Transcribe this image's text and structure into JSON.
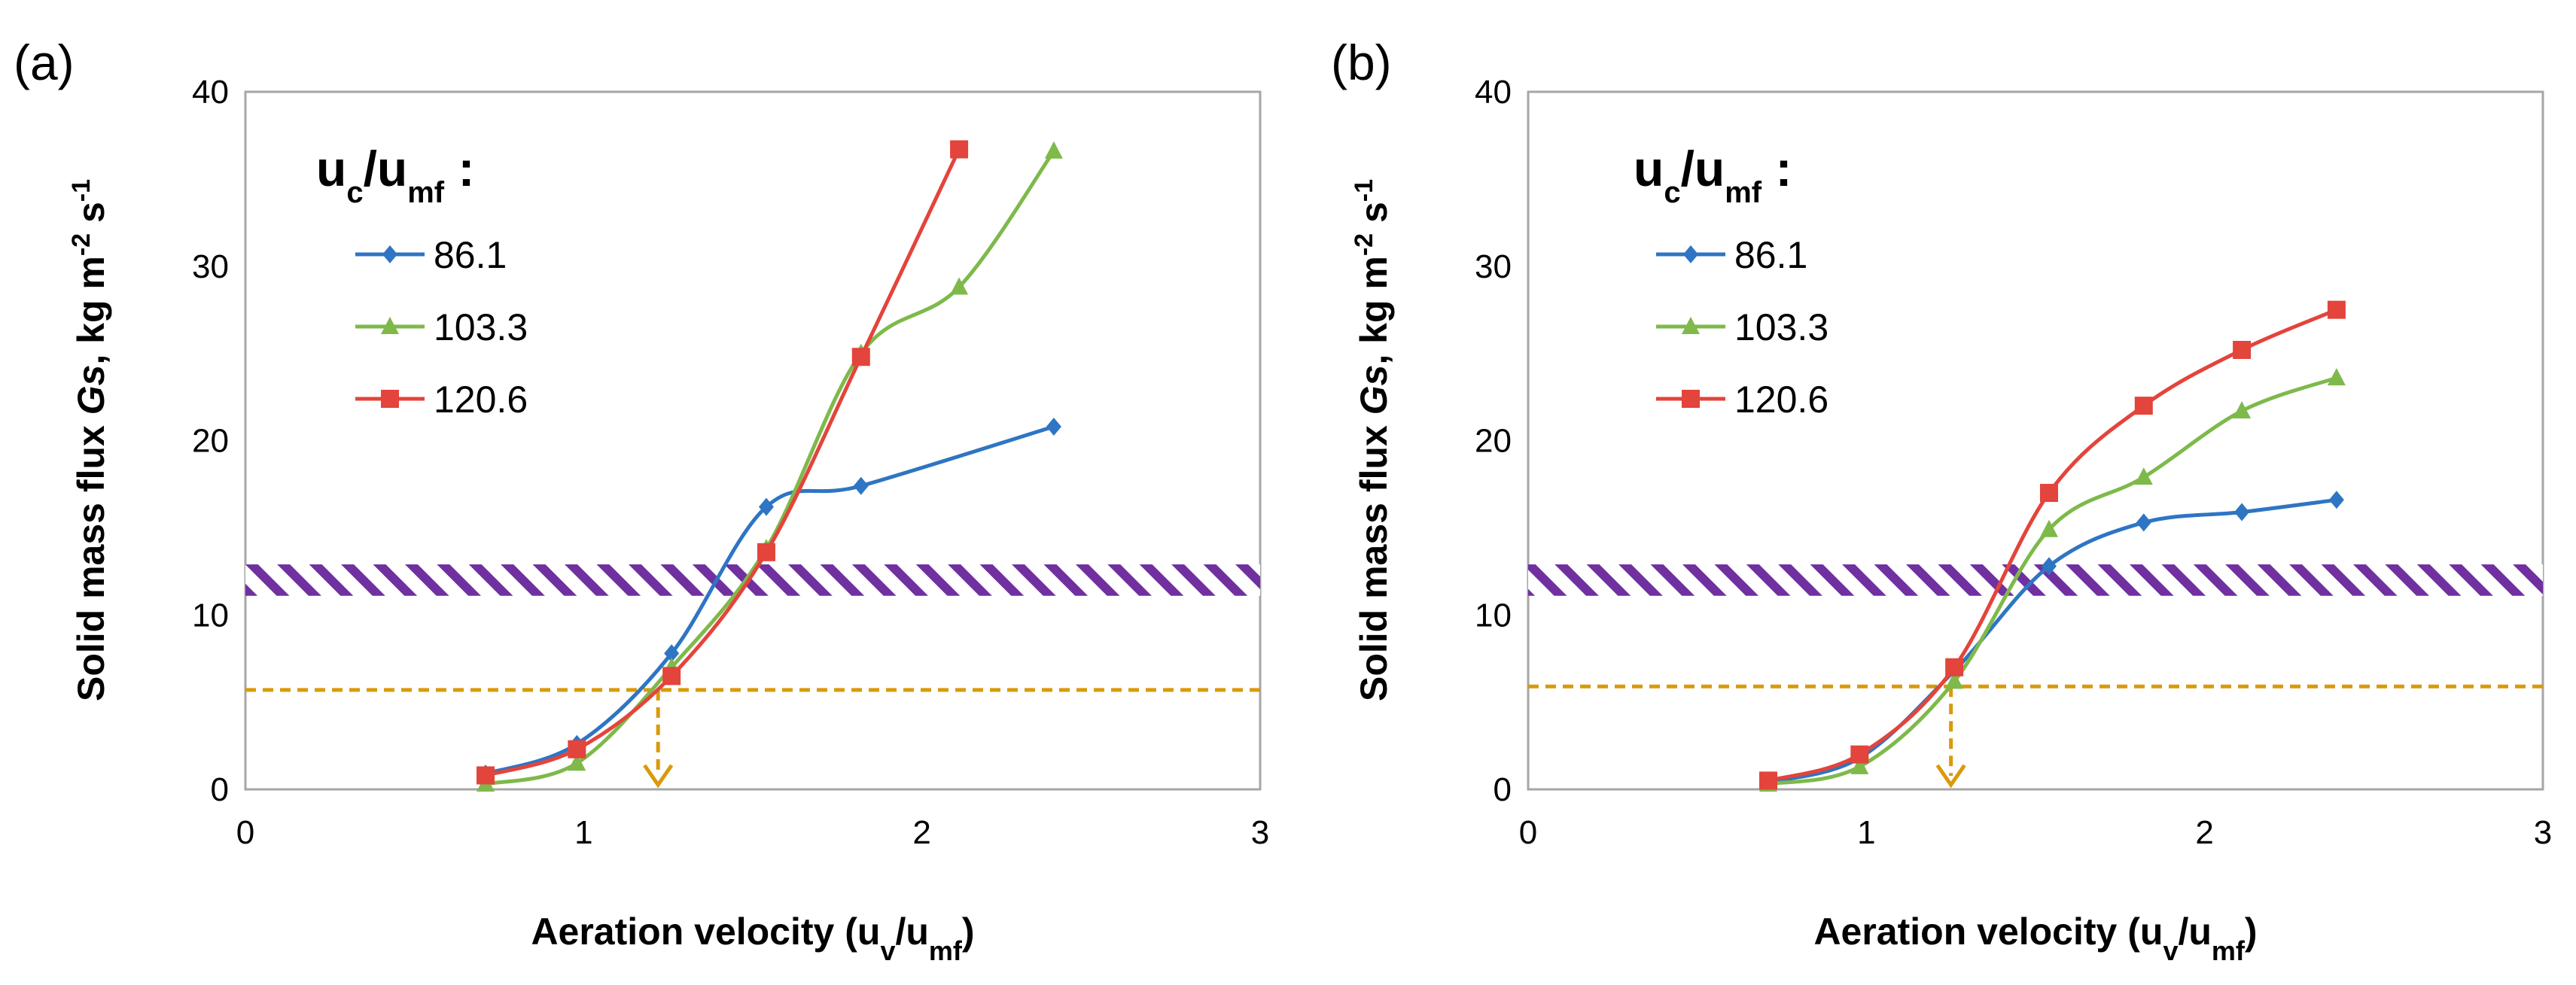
{
  "chart_data": [
    {
      "type": "line",
      "panel_label": "(a)",
      "xlabel": "Aeration velocity (u",
      "xlabel_sub": "v",
      "xlabel_mid": "/u",
      "xlabel_sub2": "mf",
      "xlabel_end": ")",
      "ylabel": "Solid mass flux ",
      "ylabel_italic": "Gs",
      "ylabel_units": ", kg m",
      "ylabel_exp1": "-2",
      "ylabel_s": " s",
      "ylabel_exp2": "-1",
      "xlim": [
        0,
        3
      ],
      "ylim": [
        0,
        40
      ],
      "xticks": [
        "0",
        "1",
        "2",
        "3"
      ],
      "yticks": [
        "0",
        "10",
        "20",
        "30",
        "40"
      ],
      "legend_title": "u",
      "legend_title_sub1": "c",
      "legend_title_mid": "/u",
      "legend_title_sub2": "mf",
      "legend_title_end": " :",
      "band": {
        "ymin": 11.1,
        "ymax": 12.9,
        "color": "#7030A0"
      },
      "threshold": {
        "y": 5.7,
        "x_arrow": 1.22,
        "color": "#D99A0B"
      },
      "series": [
        {
          "name": "86.1",
          "color": "#2E75C3",
          "marker": "diamond",
          "x": [
            0.71,
            0.98,
            1.26,
            1.54,
            1.82,
            2.39
          ],
          "y": [
            0.9,
            2.6,
            7.8,
            16.2,
            17.4,
            20.8
          ]
        },
        {
          "name": "103.3",
          "color": "#7EB94A",
          "marker": "triangle",
          "x": [
            0.71,
            0.98,
            1.26,
            1.54,
            1.82,
            2.11,
            2.39
          ],
          "y": [
            0.3,
            1.5,
            7.0,
            13.8,
            25.0,
            28.8,
            36.6
          ]
        },
        {
          "name": "120.6",
          "color": "#E3443B",
          "marker": "square",
          "x": [
            0.71,
            0.98,
            1.26,
            1.54,
            1.82,
            2.11
          ],
          "y": [
            0.8,
            2.3,
            6.5,
            13.6,
            24.8,
            36.7
          ]
        }
      ]
    },
    {
      "type": "line",
      "panel_label": "(b)",
      "xlabel": "Aeration velocity (u",
      "xlabel_sub": "v",
      "xlabel_mid": "/u",
      "xlabel_sub2": "mf",
      "xlabel_end": ")",
      "ylabel": "Solid mass flux ",
      "ylabel_italic": "Gs",
      "ylabel_units": ", kg m",
      "ylabel_exp1": "-2",
      "ylabel_s": " s",
      "ylabel_exp2": "-1",
      "xlim": [
        0,
        3
      ],
      "ylim": [
        0,
        40
      ],
      "xticks": [
        "0",
        "1",
        "2",
        "3"
      ],
      "yticks": [
        "0",
        "10",
        "20",
        "30",
        "40"
      ],
      "legend_title": "u",
      "legend_title_sub1": "c",
      "legend_title_mid": "/u",
      "legend_title_sub2": "mf",
      "legend_title_end": " :",
      "band": {
        "ymin": 11.1,
        "ymax": 12.9,
        "color": "#7030A0"
      },
      "threshold": {
        "y": 5.9,
        "x_arrow": 1.25,
        "color": "#D99A0B"
      },
      "series": [
        {
          "name": "86.1",
          "color": "#2E75C3",
          "marker": "diamond",
          "x": [
            0.71,
            0.98,
            1.26,
            1.54,
            1.82,
            2.11,
            2.39
          ],
          "y": [
            0.4,
            1.8,
            6.8,
            12.8,
            15.3,
            15.9,
            16.6
          ]
        },
        {
          "name": "103.3",
          "color": "#7EB94A",
          "marker": "triangle",
          "x": [
            0.71,
            0.98,
            1.26,
            1.54,
            1.82,
            2.11,
            2.39
          ],
          "y": [
            0.3,
            1.3,
            6.2,
            14.9,
            17.9,
            21.7,
            23.6
          ]
        },
        {
          "name": "120.6",
          "color": "#E3443B",
          "marker": "square",
          "x": [
            0.71,
            0.98,
            1.26,
            1.54,
            1.82,
            2.11,
            2.39
          ],
          "y": [
            0.5,
            2.0,
            7.0,
            17.0,
            22.0,
            25.2,
            27.5
          ]
        }
      ]
    }
  ]
}
